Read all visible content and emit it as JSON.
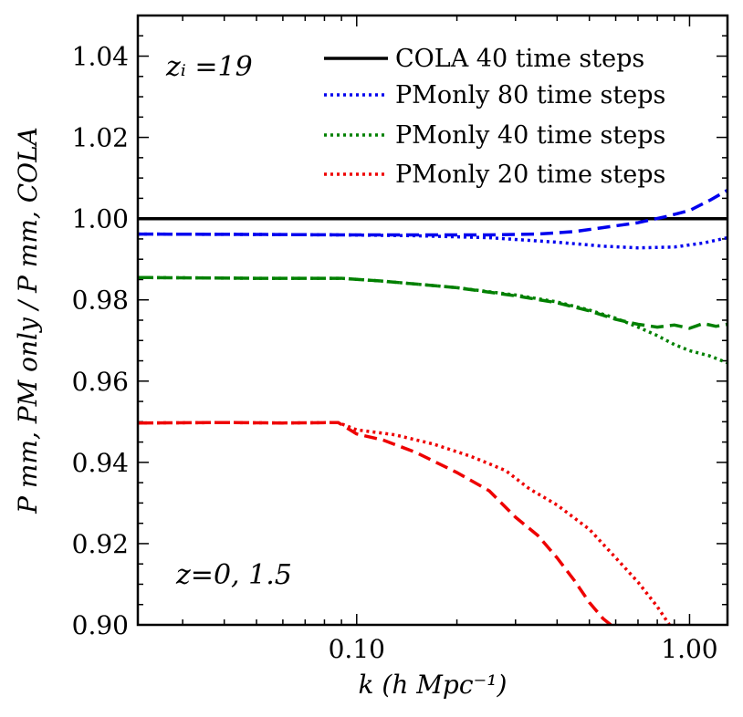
{
  "chart_data": {
    "type": "line",
    "xscale": "log",
    "xlim": [
      0.022,
      1.3
    ],
    "ylim": [
      0.9,
      1.05
    ],
    "xticks": [
      0.1,
      1.0
    ],
    "xtick_labels": [
      "0.10",
      "1.00"
    ],
    "yticks": [
      0.9,
      0.92,
      0.94,
      0.96,
      0.98,
      1.0,
      1.02,
      1.04
    ],
    "ytick_labels": [
      "0.90",
      "0.92",
      "0.94",
      "0.96",
      "0.98",
      "1.00",
      "1.02",
      "1.04"
    ],
    "xlabel": "k (h Mpc⁻¹)",
    "ylabel": "P mm, PM only / P mm, COLA",
    "annotations": {
      "zi": "zᵢ =19",
      "z": "z=0, 1.5"
    },
    "legend": [
      {
        "label": "COLA 40 time steps",
        "color": "#000000",
        "style": "solid"
      },
      {
        "label": "PMonly 80 time steps",
        "color": "#0000ee",
        "style": "dotted"
      },
      {
        "label": "PMonly 40 time steps",
        "color": "#008000",
        "style": "dotted"
      },
      {
        "label": "PMonly 20 time steps",
        "color": "#ee0000",
        "style": "dotted"
      }
    ],
    "series": [
      {
        "name": "COLA 40 time steps",
        "color": "#000000",
        "style": "solid",
        "x": [
          0.022,
          1.3
        ],
        "y": [
          1.0,
          1.0
        ]
      },
      {
        "name": "PMonly 80 time steps z=0",
        "color": "#0000ee",
        "style": "dotted",
        "x": [
          0.022,
          0.05,
          0.09,
          0.15,
          0.25,
          0.4,
          0.55,
          0.7,
          0.9,
          1.1,
          1.3
        ],
        "y": [
          0.9962,
          0.9961,
          0.996,
          0.9958,
          0.9953,
          0.9942,
          0.9932,
          0.9928,
          0.993,
          0.994,
          0.9953
        ]
      },
      {
        "name": "PMonly 80 time steps z=1.5",
        "color": "#0000ee",
        "style": "dashed",
        "x": [
          0.022,
          0.05,
          0.09,
          0.15,
          0.25,
          0.35,
          0.45,
          0.55,
          0.7,
          0.85,
          1.0,
          1.15,
          1.3
        ],
        "y": [
          0.9962,
          0.9961,
          0.996,
          0.996,
          0.996,
          0.9962,
          0.9968,
          0.9978,
          0.999,
          1.0005,
          1.002,
          1.0045,
          1.007
        ]
      },
      {
        "name": "PMonly 40 time steps z=0",
        "color": "#008000",
        "style": "dotted",
        "x": [
          0.022,
          0.05,
          0.09,
          0.12,
          0.2,
          0.3,
          0.4,
          0.5,
          0.6,
          0.7,
          0.8,
          0.9,
          1.0,
          1.15,
          1.3
        ],
        "y": [
          0.9855,
          0.9853,
          0.9853,
          0.9846,
          0.983,
          0.9812,
          0.9795,
          0.9775,
          0.9755,
          0.9733,
          0.9712,
          0.969,
          0.9675,
          0.9662,
          0.9645
        ]
      },
      {
        "name": "PMonly 40 time steps z=1.5",
        "color": "#008000",
        "style": "dashed",
        "x": [
          0.022,
          0.05,
          0.09,
          0.12,
          0.2,
          0.3,
          0.4,
          0.5,
          0.6,
          0.7,
          0.8,
          0.9,
          1.0,
          1.1,
          1.2,
          1.3
        ],
        "y": [
          0.9855,
          0.9853,
          0.9853,
          0.9846,
          0.983,
          0.981,
          0.9793,
          0.9773,
          0.9752,
          0.974,
          0.9733,
          0.9738,
          0.973,
          0.9742,
          0.9735,
          0.974
        ]
      },
      {
        "name": "PMonly 20 time steps z=0",
        "color": "#ee0000",
        "style": "dotted",
        "x": [
          0.022,
          0.04,
          0.06,
          0.088,
          0.1,
          0.13,
          0.17,
          0.22,
          0.28,
          0.33,
          0.4,
          0.5,
          0.6,
          0.7,
          0.8,
          0.87
        ],
        "y": [
          0.9497,
          0.9498,
          0.9497,
          0.9498,
          0.948,
          0.9468,
          0.9445,
          0.9415,
          0.938,
          0.9335,
          0.9295,
          0.9235,
          0.9165,
          0.9105,
          0.9045,
          0.9
        ]
      },
      {
        "name": "PMonly 20 time steps z=1.5",
        "color": "#ee0000",
        "style": "dashed",
        "x": [
          0.022,
          0.04,
          0.06,
          0.088,
          0.1,
          0.12,
          0.15,
          0.2,
          0.25,
          0.3,
          0.35,
          0.4,
          0.45,
          0.5,
          0.55,
          0.58
        ],
        "y": [
          0.9497,
          0.9498,
          0.9497,
          0.9498,
          0.947,
          0.9455,
          0.9425,
          0.9375,
          0.933,
          0.9265,
          0.922,
          0.9165,
          0.911,
          0.9055,
          0.9015,
          0.9
        ]
      }
    ]
  }
}
